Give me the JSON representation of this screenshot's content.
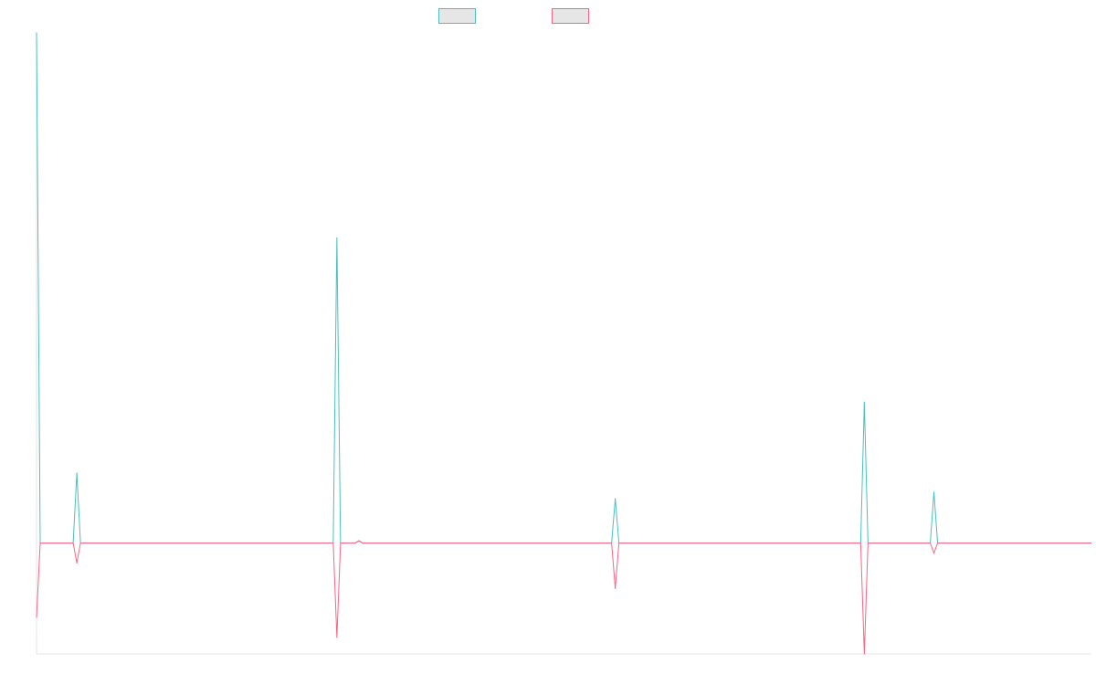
{
  "chart_data": {
    "type": "line",
    "title": "",
    "xlabel": "",
    "ylabel": "",
    "grid": false,
    "legend_position": "top-center",
    "x": [
      0,
      1,
      2,
      3,
      4,
      5,
      6,
      7,
      8,
      9,
      10,
      11,
      12,
      13,
      14,
      15,
      16,
      17,
      18,
      19,
      20,
      21,
      22,
      23,
      24,
      25,
      26,
      27,
      28,
      29,
      30,
      31,
      32,
      33,
      34,
      35,
      36,
      37,
      38,
      39,
      40,
      41,
      42,
      43,
      44,
      45,
      46,
      47,
      48,
      49,
      50,
      51,
      52,
      53,
      54,
      55,
      56,
      57,
      58,
      59,
      60,
      61,
      62,
      63,
      64,
      65,
      66,
      67,
      68,
      69,
      70,
      71,
      72,
      73,
      74,
      75,
      76,
      77,
      78,
      79,
      80,
      81,
      82,
      83,
      84,
      85,
      86,
      87,
      88,
      89,
      90,
      91,
      92,
      93,
      94,
      95,
      96,
      97,
      98,
      99,
      100,
      101,
      102,
      103,
      104,
      105,
      106,
      107,
      108,
      109,
      110,
      111,
      112,
      113,
      114,
      115,
      116,
      117,
      118,
      119,
      120,
      121,
      122,
      123,
      124,
      125,
      126,
      127,
      128,
      129,
      130,
      131,
      132,
      133,
      134,
      135,
      136,
      137,
      138,
      139,
      140,
      141,
      142,
      143,
      144,
      145,
      146,
      147,
      148,
      149,
      150,
      151,
      152,
      153,
      154,
      155,
      156,
      157,
      158,
      159,
      160,
      161,
      162,
      163,
      164,
      165,
      166,
      167,
      168,
      169,
      170,
      171,
      172,
      173,
      174,
      175,
      176,
      177,
      178,
      179,
      180,
      181,
      182,
      183,
      184,
      185,
      186,
      187,
      188,
      189,
      190,
      191,
      192,
      193,
      194,
      195,
      196,
      197,
      198,
      199,
      200,
      201,
      202,
      203,
      204,
      205,
      206,
      207,
      208,
      209,
      210,
      211,
      212,
      213,
      214,
      215,
      216,
      217,
      218,
      219,
      220,
      221,
      222,
      223,
      224,
      225,
      226,
      227,
      228,
      229,
      230,
      231,
      232,
      233,
      234,
      235,
      236,
      237,
      238,
      239,
      240,
      241,
      242,
      243,
      244,
      245,
      246,
      247,
      248,
      249,
      250,
      251,
      252,
      253,
      254,
      255,
      256,
      257,
      258,
      259,
      260,
      261,
      262,
      263,
      264,
      265,
      266,
      267,
      268,
      269,
      270,
      271,
      272,
      273,
      274,
      275,
      276,
      277,
      278,
      279,
      280,
      281,
      282,
      283,
      284,
      285,
      286,
      287,
      288
    ],
    "ylim": [
      -100,
      460
    ],
    "series": [
      {
        "name": "",
        "color": "#4bc0c0",
        "fill": "#e6e6e6",
        "spikes": [
          [
            0,
            460
          ],
          [
            11,
            63
          ],
          [
            82,
            275
          ],
          [
            88,
            2
          ],
          [
            158,
            40
          ],
          [
            226,
            127
          ],
          [
            245,
            46
          ]
        ]
      },
      {
        "name": "",
        "color": "#ff6384",
        "fill": "#e6e6e6",
        "spikes": [
          [
            0,
            -67
          ],
          [
            11,
            -18
          ],
          [
            82,
            -85
          ],
          [
            88,
            2
          ],
          [
            158,
            -41
          ],
          [
            226,
            -100
          ],
          [
            245,
            -9
          ]
        ]
      }
    ]
  }
}
